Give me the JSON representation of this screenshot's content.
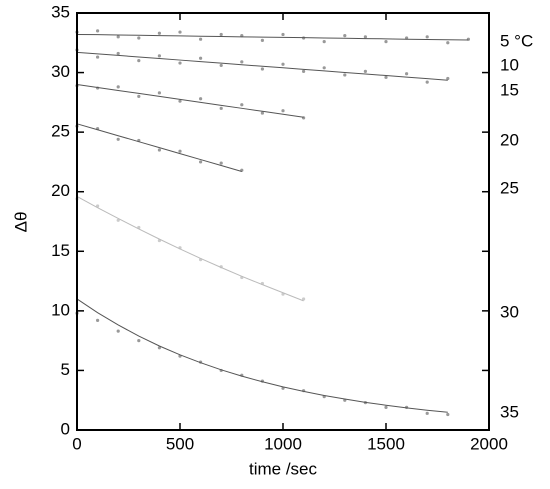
{
  "chart_data": {
    "type": "scatter",
    "x_label": "time /sec",
    "y_label": "Δθ",
    "xlim": [
      0,
      2000
    ],
    "xticks": [
      0,
      500,
      1000,
      1500,
      2000
    ],
    "ylim": [
      0,
      35
    ],
    "yticks": [
      0,
      5,
      10,
      15,
      20,
      25,
      30,
      35
    ],
    "annotations": [
      "5 °C",
      "10",
      "15",
      "20",
      "25",
      "30",
      "35"
    ],
    "series": [
      {
        "color": "#999999",
        "x": [
          0,
          100,
          200,
          300,
          400,
          500,
          600,
          700,
          800,
          900,
          1000,
          1100,
          1200,
          1300,
          1400,
          1500,
          1600,
          1700,
          1800,
          1900
        ],
        "values": [
          33.4,
          33.5,
          33.0,
          32.9,
          33.3,
          33.4,
          32.8,
          33.2,
          33.1,
          32.7,
          33.2,
          32.9,
          32.6,
          33.1,
          33.0,
          32.6,
          32.9,
          33.0,
          32.5,
          32.8
        ],
        "fit": [
          33.2,
          33.18,
          33.15,
          33.13,
          33.1,
          33.08,
          33.05,
          33.03,
          33.0,
          32.98,
          32.95,
          32.93,
          32.9,
          32.88,
          32.85,
          32.83,
          32.8,
          32.78,
          32.75,
          32.73
        ]
      },
      {
        "color": "#999999",
        "x": [
          0,
          100,
          200,
          300,
          400,
          500,
          600,
          700,
          800,
          900,
          1000,
          1100,
          1200,
          1300,
          1400,
          1500,
          1600,
          1700,
          1800
        ],
        "values": [
          31.9,
          31.3,
          31.6,
          31.0,
          31.4,
          30.8,
          31.2,
          30.6,
          30.9,
          30.3,
          30.7,
          30.1,
          30.4,
          29.8,
          30.1,
          29.6,
          29.9,
          29.2,
          29.5
        ],
        "fit": [
          31.7,
          31.57,
          31.44,
          31.31,
          31.18,
          31.05,
          30.92,
          30.79,
          30.66,
          30.53,
          30.4,
          30.27,
          30.14,
          30.01,
          29.88,
          29.75,
          29.62,
          29.49,
          29.36
        ]
      },
      {
        "color": "#999999",
        "x": [
          0,
          100,
          200,
          300,
          400,
          500,
          600,
          700,
          800,
          900,
          1000,
          1100
        ],
        "values": [
          28.9,
          28.7,
          28.8,
          28.0,
          28.3,
          27.6,
          27.8,
          27.0,
          27.3,
          26.6,
          26.8,
          26.2
        ],
        "fit": [
          29,
          28.75,
          28.5,
          28.25,
          28,
          27.75,
          27.5,
          27.25,
          27,
          26.75,
          26.5,
          26.25
        ]
      },
      {
        "color": "#999999",
        "x": [
          0,
          100,
          200,
          300,
          400,
          500,
          600,
          700,
          800
        ],
        "values": [
          25.5,
          25.3,
          24.4,
          24.3,
          23.5,
          23.4,
          22.5,
          22.4,
          21.8
        ],
        "fit": [
          25.7,
          25.2,
          24.7,
          24.2,
          23.7,
          23.2,
          22.7,
          22.2,
          21.7
        ]
      },
      {
        "color": "#cccccc",
        "x": [
          0,
          100,
          200,
          300,
          400,
          500,
          600,
          700,
          800,
          900,
          1000,
          1100
        ],
        "values": [
          19.4,
          18.8,
          17.6,
          17.0,
          15.9,
          15.3,
          14.3,
          13.7,
          12.8,
          12.3,
          11.4,
          11.0
        ],
        "fit": [
          19.6,
          18.66,
          17.76,
          16.88,
          16.02,
          15.2,
          14.4,
          13.64,
          12.9,
          12.2,
          11.52,
          10.84
        ]
      },
      {
        "color": "#999999",
        "x": [
          0,
          100,
          200,
          300,
          400,
          500,
          600,
          700,
          800,
          900,
          1000,
          1100,
          1200,
          1300,
          1400,
          1500,
          1600,
          1700,
          1800
        ],
        "values": [
          9.8,
          9.2,
          8.3,
          7.5,
          6.9,
          6.2,
          5.7,
          5.0,
          4.6,
          4.1,
          3.5,
          3.3,
          2.8,
          2.5,
          2.3,
          1.9,
          1.9,
          1.4,
          1.3
        ],
        "fit": [
          11,
          9.85,
          8.82,
          7.88,
          7.05,
          6.31,
          5.65,
          5.05,
          4.52,
          4.05,
          3.62,
          3.24,
          2.9,
          2.6,
          2.32,
          2.08,
          1.86,
          1.66,
          1.49
        ]
      }
    ]
  }
}
